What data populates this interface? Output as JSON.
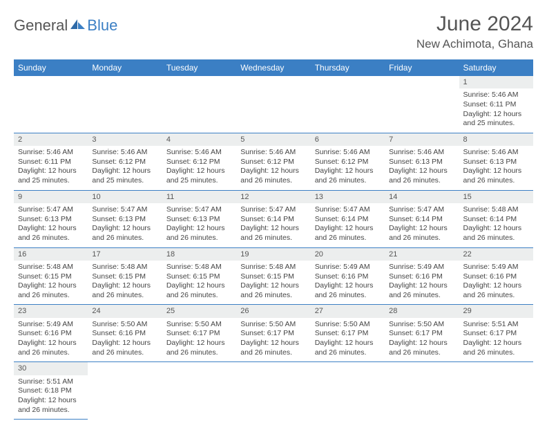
{
  "brand": {
    "part1": "General",
    "part2": "Blue"
  },
  "title": "June 2024",
  "location": "New Achimota, Ghana",
  "colors": {
    "header_bg": "#3b7fc4",
    "header_fg": "#ffffff",
    "band": "#eceeee",
    "rule": "#3b7fc4"
  },
  "weekdays": [
    "Sunday",
    "Monday",
    "Tuesday",
    "Wednesday",
    "Thursday",
    "Friday",
    "Saturday"
  ],
  "weeks": [
    [
      null,
      null,
      null,
      null,
      null,
      null,
      {
        "d": "1",
        "sr": "5:46 AM",
        "ss": "6:11 PM",
        "dl": "12 hours and 25 minutes."
      }
    ],
    [
      {
        "d": "2",
        "sr": "5:46 AM",
        "ss": "6:11 PM",
        "dl": "12 hours and 25 minutes."
      },
      {
        "d": "3",
        "sr": "5:46 AM",
        "ss": "6:12 PM",
        "dl": "12 hours and 25 minutes."
      },
      {
        "d": "4",
        "sr": "5:46 AM",
        "ss": "6:12 PM",
        "dl": "12 hours and 25 minutes."
      },
      {
        "d": "5",
        "sr": "5:46 AM",
        "ss": "6:12 PM",
        "dl": "12 hours and 26 minutes."
      },
      {
        "d": "6",
        "sr": "5:46 AM",
        "ss": "6:12 PM",
        "dl": "12 hours and 26 minutes."
      },
      {
        "d": "7",
        "sr": "5:46 AM",
        "ss": "6:13 PM",
        "dl": "12 hours and 26 minutes."
      },
      {
        "d": "8",
        "sr": "5:46 AM",
        "ss": "6:13 PM",
        "dl": "12 hours and 26 minutes."
      }
    ],
    [
      {
        "d": "9",
        "sr": "5:47 AM",
        "ss": "6:13 PM",
        "dl": "12 hours and 26 minutes."
      },
      {
        "d": "10",
        "sr": "5:47 AM",
        "ss": "6:13 PM",
        "dl": "12 hours and 26 minutes."
      },
      {
        "d": "11",
        "sr": "5:47 AM",
        "ss": "6:13 PM",
        "dl": "12 hours and 26 minutes."
      },
      {
        "d": "12",
        "sr": "5:47 AM",
        "ss": "6:14 PM",
        "dl": "12 hours and 26 minutes."
      },
      {
        "d": "13",
        "sr": "5:47 AM",
        "ss": "6:14 PM",
        "dl": "12 hours and 26 minutes."
      },
      {
        "d": "14",
        "sr": "5:47 AM",
        "ss": "6:14 PM",
        "dl": "12 hours and 26 minutes."
      },
      {
        "d": "15",
        "sr": "5:48 AM",
        "ss": "6:14 PM",
        "dl": "12 hours and 26 minutes."
      }
    ],
    [
      {
        "d": "16",
        "sr": "5:48 AM",
        "ss": "6:15 PM",
        "dl": "12 hours and 26 minutes."
      },
      {
        "d": "17",
        "sr": "5:48 AM",
        "ss": "6:15 PM",
        "dl": "12 hours and 26 minutes."
      },
      {
        "d": "18",
        "sr": "5:48 AM",
        "ss": "6:15 PM",
        "dl": "12 hours and 26 minutes."
      },
      {
        "d": "19",
        "sr": "5:48 AM",
        "ss": "6:15 PM",
        "dl": "12 hours and 26 minutes."
      },
      {
        "d": "20",
        "sr": "5:49 AM",
        "ss": "6:16 PM",
        "dl": "12 hours and 26 minutes."
      },
      {
        "d": "21",
        "sr": "5:49 AM",
        "ss": "6:16 PM",
        "dl": "12 hours and 26 minutes."
      },
      {
        "d": "22",
        "sr": "5:49 AM",
        "ss": "6:16 PM",
        "dl": "12 hours and 26 minutes."
      }
    ],
    [
      {
        "d": "23",
        "sr": "5:49 AM",
        "ss": "6:16 PM",
        "dl": "12 hours and 26 minutes."
      },
      {
        "d": "24",
        "sr": "5:50 AM",
        "ss": "6:16 PM",
        "dl": "12 hours and 26 minutes."
      },
      {
        "d": "25",
        "sr": "5:50 AM",
        "ss": "6:17 PM",
        "dl": "12 hours and 26 minutes."
      },
      {
        "d": "26",
        "sr": "5:50 AM",
        "ss": "6:17 PM",
        "dl": "12 hours and 26 minutes."
      },
      {
        "d": "27",
        "sr": "5:50 AM",
        "ss": "6:17 PM",
        "dl": "12 hours and 26 minutes."
      },
      {
        "d": "28",
        "sr": "5:50 AM",
        "ss": "6:17 PM",
        "dl": "12 hours and 26 minutes."
      },
      {
        "d": "29",
        "sr": "5:51 AM",
        "ss": "6:17 PM",
        "dl": "12 hours and 26 minutes."
      }
    ],
    [
      {
        "d": "30",
        "sr": "5:51 AM",
        "ss": "6:18 PM",
        "dl": "12 hours and 26 minutes."
      },
      null,
      null,
      null,
      null,
      null,
      null
    ]
  ],
  "labels": {
    "sunrise": "Sunrise:",
    "sunset": "Sunset:",
    "daylight": "Daylight:"
  }
}
